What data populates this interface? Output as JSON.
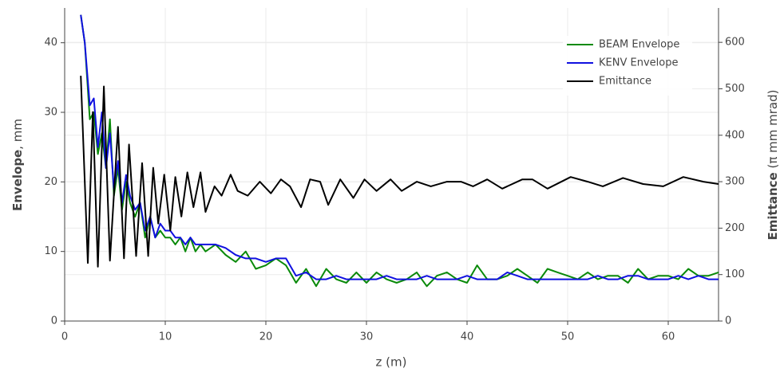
{
  "chart_data": {
    "type": "line",
    "x_label": "z (m)",
    "y_label": "Envelope",
    "y_label_unit": ", mm",
    "y2_label": "Emittance",
    "y2_label_unit": " (π mm mrad)",
    "xlim": [
      0,
      65
    ],
    "xticks": [
      0,
      10,
      20,
      30,
      40,
      50,
      60
    ],
    "ylim": [
      0,
      45
    ],
    "yticks": [
      0,
      10,
      20,
      30,
      40
    ],
    "y2lim": [
      0,
      674
    ],
    "y2ticks": [
      0,
      100,
      200,
      300,
      400,
      500,
      600
    ],
    "grid": true,
    "legend": "top-right",
    "series": [
      {
        "name": "BEAM Envelope",
        "color": "#0a8a0a",
        "x": [
          1.6,
          2.0,
          2.5,
          2.9,
          3.3,
          3.7,
          4.1,
          4.5,
          4.9,
          5.3,
          5.7,
          6.1,
          6.5,
          7.0,
          7.5,
          8.0,
          8.5,
          9.0,
          9.5,
          10,
          10.5,
          11,
          11.5,
          12,
          12.5,
          13,
          13.5,
          14,
          15,
          16,
          17,
          18,
          19,
          20,
          21,
          22,
          23,
          24,
          25,
          26,
          27,
          28,
          29,
          30,
          31,
          32,
          33,
          34,
          35,
          36,
          37,
          38,
          39,
          40,
          41,
          42,
          43,
          44,
          45,
          46,
          47,
          48,
          49,
          50,
          51,
          52,
          53,
          54,
          55,
          56,
          57,
          58,
          59,
          60,
          61,
          62,
          63,
          64,
          65
        ],
        "values": [
          44,
          40,
          29,
          30,
          24,
          27,
          22,
          29,
          18,
          22,
          16,
          20,
          17,
          15,
          17,
          12,
          15,
          12,
          13,
          12,
          12,
          11,
          12,
          10,
          12,
          10,
          11,
          10,
          11,
          9.5,
          8.5,
          10,
          7.5,
          8,
          9,
          8,
          5.5,
          7.5,
          5,
          7.5,
          6,
          5.5,
          7,
          5.5,
          7,
          6,
          5.5,
          6,
          7,
          5,
          6.5,
          7,
          6,
          5.5,
          8,
          6,
          6,
          6.5,
          7.5,
          6.5,
          5.5,
          7.5,
          7,
          6.5,
          6,
          7,
          6,
          6.5,
          6.5,
          5.5,
          7.5,
          6,
          6.5,
          6.5,
          6,
          7.5,
          6.5,
          6.5,
          7
        ]
      },
      {
        "name": "KENV Envelope",
        "color": "#1010e0",
        "x": [
          1.6,
          2.0,
          2.5,
          2.9,
          3.3,
          3.7,
          4.1,
          4.5,
          4.9,
          5.3,
          5.7,
          6.1,
          6.5,
          7.0,
          7.5,
          8.0,
          8.5,
          9.0,
          9.5,
          10,
          10.5,
          11,
          11.5,
          12,
          12.5,
          13,
          13.5,
          14,
          15,
          16,
          17,
          18,
          19,
          20,
          21,
          22,
          23,
          24,
          25,
          26,
          27,
          28,
          29,
          30,
          31,
          32,
          33,
          34,
          35,
          36,
          37,
          38,
          39,
          40,
          41,
          42,
          43,
          44,
          45,
          46,
          47,
          48,
          49,
          50,
          51,
          52,
          53,
          54,
          55,
          56,
          57,
          58,
          59,
          60,
          61,
          62,
          63,
          64,
          65
        ],
        "values": [
          44,
          40,
          31,
          32,
          25,
          30,
          22,
          27,
          19,
          23,
          17,
          21,
          18,
          16,
          17,
          13,
          15,
          12,
          14,
          13,
          13,
          12,
          12,
          11,
          12,
          11,
          11,
          11,
          11,
          10.5,
          9.5,
          9,
          9,
          8.5,
          9,
          9,
          6.5,
          7,
          6,
          6,
          6.5,
          6,
          6,
          6,
          6,
          6.5,
          6,
          6,
          6,
          6.5,
          6,
          6,
          6,
          6.5,
          6,
          6,
          6,
          7,
          6.5,
          6,
          6,
          6,
          6,
          6,
          6,
          6,
          6.5,
          6,
          6,
          6.5,
          6.5,
          6,
          6,
          6,
          6.5,
          6,
          6.5,
          6,
          6
        ]
      },
      {
        "name": "Emittance",
        "color": "#000000",
        "axis": "y2",
        "x": [
          1.6,
          2.3,
          2.8,
          3.3,
          3.9,
          4.5,
          5.3,
          5.9,
          6.4,
          7.1,
          7.7,
          8.3,
          8.8,
          9.3,
          9.9,
          10.5,
          11.0,
          11.6,
          12.2,
          12.8,
          13.5,
          14.0,
          14.9,
          15.6,
          16.5,
          17.2,
          18.2,
          19.4,
          20.5,
          21.5,
          22.4,
          23.5,
          24.4,
          25.4,
          26.2,
          27.4,
          28.7,
          29.8,
          31.0,
          32.4,
          33.5,
          35.0,
          36.4,
          38.0,
          39.4,
          40.6,
          42.0,
          43.5,
          45.5,
          46.5,
          48.0,
          50.3,
          52.0,
          53.5,
          55.5,
          57.5,
          59.5,
          61.5,
          63.5,
          65
        ],
        "values": [
          528,
          125,
          450,
          117,
          505,
          130,
          418,
          135,
          380,
          140,
          340,
          140,
          330,
          210,
          315,
          195,
          310,
          225,
          320,
          245,
          320,
          235,
          290,
          270,
          315,
          280,
          270,
          300,
          275,
          305,
          290,
          245,
          305,
          300,
          250,
          305,
          265,
          305,
          280,
          305,
          280,
          300,
          290,
          300,
          300,
          290,
          305,
          285,
          305,
          305,
          285,
          310,
          300,
          290,
          308,
          295,
          290,
          310,
          300,
          295
        ]
      }
    ]
  }
}
